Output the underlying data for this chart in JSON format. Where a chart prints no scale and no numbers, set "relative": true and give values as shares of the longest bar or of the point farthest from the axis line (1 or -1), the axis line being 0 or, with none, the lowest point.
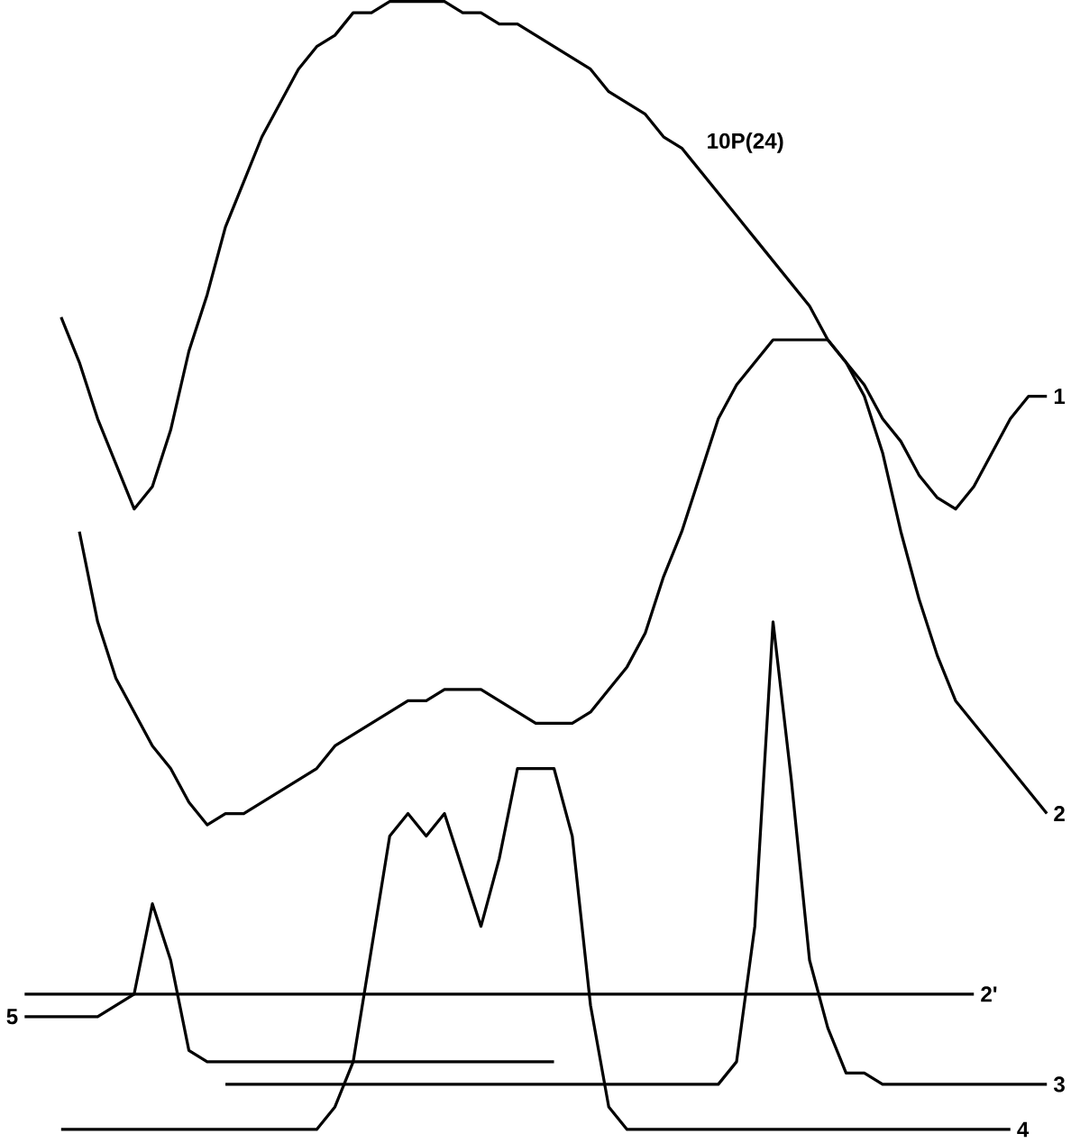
{
  "chart_data": {
    "type": "line",
    "relative": true,
    "categories": [
      null,
      null,
      null,
      null,
      null,
      null,
      null,
      null,
      null,
      null,
      null,
      null,
      null,
      null,
      null,
      null,
      null,
      null,
      null,
      null,
      null,
      null,
      null,
      null,
      null,
      null,
      null,
      null,
      null,
      null,
      null,
      null,
      null,
      null,
      null,
      null,
      null,
      null,
      null,
      null,
      null,
      null,
      null,
      null,
      null,
      null,
      null,
      null,
      null,
      null,
      null,
      null,
      null,
      null,
      null,
      null,
      null
    ],
    "series": [
      {
        "name": "1",
        "color": "#000000",
        "values": [
          null,
          null,
          0.72,
          0.68,
          0.63,
          0.59,
          0.55,
          0.57,
          0.62,
          0.69,
          0.74,
          0.8,
          0.84,
          0.88,
          0.91,
          0.94,
          0.96,
          0.97,
          0.99,
          0.99,
          1.0,
          1.0,
          1.0,
          1.0,
          0.99,
          0.99,
          0.98,
          0.98,
          0.97,
          0.96,
          0.95,
          0.94,
          0.92,
          0.91,
          0.9,
          0.88,
          0.87,
          0.85,
          0.83,
          0.81,
          0.79,
          0.77,
          0.75,
          0.73,
          0.7,
          0.68,
          0.66,
          0.63,
          0.61,
          0.58,
          0.56,
          0.55,
          0.57,
          0.6,
          0.63,
          0.65,
          0.65
        ]
      },
      {
        "name": "2",
        "color": "#000000",
        "values": [
          null,
          null,
          null,
          0.53,
          0.45,
          0.4,
          0.37,
          0.34,
          0.32,
          0.29,
          0.27,
          0.28,
          0.28,
          0.29,
          0.3,
          0.31,
          0.32,
          0.34,
          0.35,
          0.36,
          0.37,
          0.38,
          0.38,
          0.39,
          0.39,
          0.39,
          0.38,
          0.37,
          0.36,
          0.36,
          0.36,
          0.37,
          0.39,
          0.41,
          0.44,
          0.49,
          0.53,
          0.58,
          0.63,
          0.66,
          0.68,
          0.7,
          0.7,
          0.7,
          0.7,
          0.68,
          0.65,
          0.6,
          0.53,
          0.47,
          0.42,
          0.38,
          0.36,
          0.34,
          0.32,
          0.3,
          0.28
        ]
      },
      {
        "name": "2'",
        "color": "#000000",
        "values": [
          0.12,
          0.12,
          0.12,
          0.12,
          0.12,
          0.12,
          0.12,
          0.12,
          0.12,
          0.12,
          0.12,
          0.12,
          0.12,
          0.12,
          0.12,
          0.12,
          0.12,
          0.12,
          0.12,
          0.12,
          0.12,
          0.12,
          0.12,
          0.12,
          0.12,
          0.12,
          0.12,
          0.12,
          0.12,
          0.12,
          0.12,
          0.12,
          0.12,
          0.12,
          0.12,
          0.12,
          0.12,
          0.12,
          0.12,
          0.12,
          0.12,
          0.12,
          0.12,
          0.12,
          0.12,
          0.12,
          0.12,
          0.12,
          0.12,
          0.12,
          0.12,
          0.12,
          0.12,
          null,
          null,
          null,
          null
        ]
      },
      {
        "name": "3",
        "color": "#000000",
        "values": [
          null,
          null,
          null,
          null,
          null,
          null,
          null,
          null,
          null,
          null,
          null,
          0.04,
          0.04,
          0.04,
          0.04,
          0.04,
          0.04,
          0.04,
          0.04,
          0.04,
          0.04,
          0.04,
          0.04,
          0.04,
          0.04,
          0.04,
          0.04,
          0.04,
          0.04,
          0.04,
          0.04,
          0.04,
          0.04,
          0.04,
          0.04,
          0.04,
          0.04,
          0.04,
          0.04,
          0.06,
          0.18,
          0.45,
          0.31,
          0.15,
          0.09,
          0.05,
          0.05,
          0.04,
          0.04,
          0.04,
          0.04,
          0.04,
          0.04,
          0.04,
          0.04,
          0.04,
          0.04
        ]
      },
      {
        "name": "4",
        "color": "#000000",
        "values": [
          null,
          null,
          0.0,
          0.0,
          0.0,
          0.0,
          0.0,
          0.0,
          0.0,
          0.0,
          0.0,
          0.0,
          0.0,
          0.0,
          0.0,
          0.0,
          0.0,
          0.02,
          0.06,
          0.16,
          0.26,
          0.28,
          0.26,
          0.28,
          0.23,
          0.18,
          0.24,
          0.32,
          0.32,
          0.32,
          0.26,
          0.11,
          0.02,
          0.0,
          0.0,
          0.0,
          0.0,
          0.0,
          0.0,
          0.0,
          0.0,
          0.0,
          0.0,
          0.0,
          0.0,
          0.0,
          0.0,
          0.0,
          0.0,
          0.0,
          0.0,
          0.0,
          0.0,
          0.0,
          0.0,
          null,
          null
        ]
      },
      {
        "name": "5",
        "color": "#000000",
        "values": [
          0.1,
          0.1,
          0.1,
          0.1,
          0.1,
          0.11,
          0.12,
          0.2,
          0.15,
          0.07,
          0.06,
          0.06,
          0.06,
          0.06,
          0.06,
          0.06,
          0.06,
          0.06,
          0.06,
          0.06,
          0.06,
          0.06,
          0.06,
          0.06,
          0.06,
          0.06,
          0.06,
          0.06,
          0.06,
          0.06,
          null,
          null,
          null,
          null,
          null,
          null,
          null,
          null,
          null,
          null,
          null,
          null,
          null,
          null,
          null,
          null,
          null,
          null,
          null,
          null,
          null,
          null,
          null,
          null,
          null,
          null,
          null
        ]
      }
    ],
    "annotations": [
      "10P(24)"
    ]
  }
}
